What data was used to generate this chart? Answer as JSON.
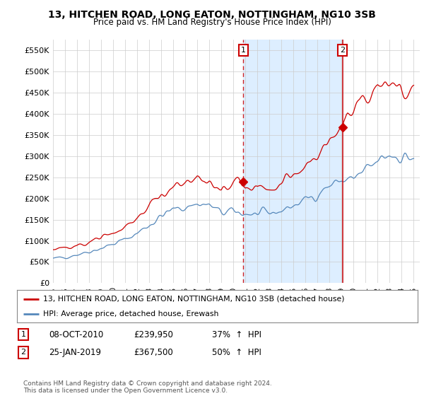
{
  "title": "13, HITCHEN ROAD, LONG EATON, NOTTINGHAM, NG10 3SB",
  "subtitle": "Price paid vs. HM Land Registry's House Price Index (HPI)",
  "ylabel_ticks": [
    "£0",
    "£50K",
    "£100K",
    "£150K",
    "£200K",
    "£250K",
    "£300K",
    "£350K",
    "£400K",
    "£450K",
    "£500K",
    "£550K"
  ],
  "ytick_values": [
    0,
    50000,
    100000,
    150000,
    200000,
    250000,
    300000,
    350000,
    400000,
    450000,
    500000,
    550000
  ],
  "ylim": [
    0,
    575000
  ],
  "legend_property": "13, HITCHEN ROAD, LONG EATON, NOTTINGHAM, NG10 3SB (detached house)",
  "legend_hpi": "HPI: Average price, detached house, Erewash",
  "property_color": "#cc0000",
  "hpi_color": "#5588bb",
  "marker1_date_x": 2010.83,
  "marker1_price": 239950,
  "marker2_date_x": 2019.07,
  "marker2_price": 367500,
  "annotation1": "1",
  "annotation2": "2",
  "vline1_x": 2010.83,
  "vline2_x": 2019.07,
  "vline_color": "#cc0000",
  "shade_color": "#ddeeff",
  "background_color": "#ffffff",
  "plot_bg_color": "#ffffff",
  "grid_color": "#cccccc",
  "xmin": 1995.0,
  "xmax": 2025.5,
  "copyright": "Contains HM Land Registry data © Crown copyright and database right 2024.\nThis data is licensed under the Open Government Licence v3.0."
}
